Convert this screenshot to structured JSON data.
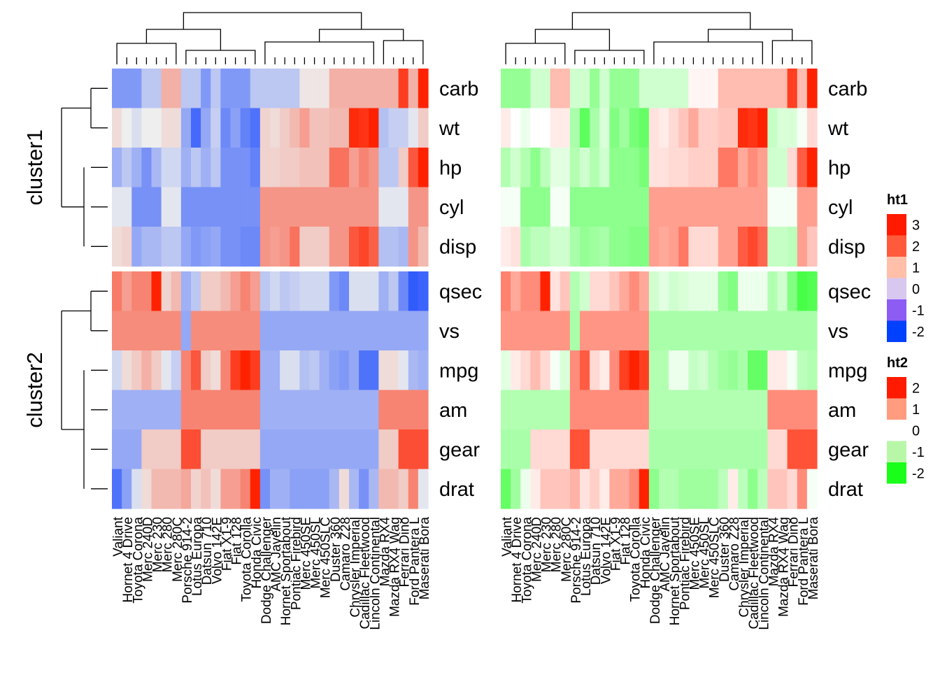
{
  "chart_data": {
    "type": "heatmap",
    "row_groups": [
      {
        "name": "cluster1",
        "rows": [
          "carb",
          "wt",
          "hp",
          "cyl",
          "disp"
        ]
      },
      {
        "name": "cluster2",
        "rows": [
          "qsec",
          "vs",
          "mpg",
          "am",
          "gear",
          "drat"
        ]
      }
    ],
    "columns": [
      "Valiant",
      "Hornet 4 Drive",
      "Toyota Corona",
      "Merc 240D",
      "Merc 230",
      "Merc 280",
      "Merc 280C",
      "Porsche 914-2",
      "Lotus Europa",
      "Datsun 710",
      "Volvo 142E",
      "Fiat X1-9",
      "Fiat 128",
      "Toyota Corolla",
      "Honda Civic",
      "Dodge Challenger",
      "AMC Javelin",
      "Hornet Sportabout",
      "Pontiac Firebird",
      "Merc 450SE",
      "Merc 450SL",
      "Merc 450SLC",
      "Duster 360",
      "Camaro Z28",
      "Chrysler Imperial",
      "Cadillac Fleetwood",
      "Lincoln Continental",
      "Mazda RX4",
      "Mazda RX4 Wag",
      "Ferrari Dino",
      "Ford Pantera L",
      "Maserati Bora"
    ],
    "column_labels_right": [
      "Valiant",
      "Hornet 4 Drive",
      "Toyota Corona",
      "Merc 240D",
      "Merc 230",
      "Merc 280",
      "Merc 280C",
      "Porsche 914-2",
      "Lotus Europa",
      "Datsun 710",
      "Volvo 142E",
      "Fiat X1-9",
      "Fiat 128",
      "Toyota Corolla",
      "Honda Civic",
      "Dodge Challenger",
      "AMC Javelin",
      "Hornet Sportabout",
      "Pontiac Firebird",
      "Merc 450SE",
      "Merc 450SL",
      "Merc 450SLC",
      "Duster 360",
      "Camaro Z28",
      "Chrysler Imperial",
      "Cadillac Fleetwood",
      "Lincoln Continental",
      "Mazda RX4",
      "Mazda RX4 Wag",
      "Ferrari Dino",
      "Ford Pantera L",
      "Maserati Bora"
    ],
    "values": {
      "carb": [
        -1.1,
        -1.1,
        -1.1,
        -0.5,
        -0.5,
        0.7,
        0.7,
        -0.5,
        -0.5,
        -1.1,
        -0.5,
        -1.1,
        -1.1,
        -1.1,
        -0.5,
        -0.5,
        -0.5,
        -0.5,
        -0.5,
        0.1,
        0.1,
        0.1,
        0.7,
        0.7,
        0.7,
        0.7,
        0.7,
        0.7,
        0.7,
        2.0,
        0.7,
        3.2
      ],
      "wt": [
        0.2,
        0.0,
        -0.2,
        0.0,
        0.0,
        0.2,
        0.2,
        -0.9,
        -1.7,
        -0.9,
        -0.4,
        -1.3,
        -1.0,
        -1.4,
        -1.6,
        0.3,
        0.2,
        0.4,
        0.6,
        0.9,
        0.5,
        0.5,
        0.6,
        0.6,
        2.2,
        2.1,
        2.3,
        -0.6,
        -0.4,
        -0.4,
        -0.1,
        0.4
      ],
      "hp": [
        -0.8,
        -0.5,
        -0.8,
        -1.2,
        -0.7,
        -0.3,
        -0.3,
        -0.8,
        -0.5,
        -0.8,
        -0.5,
        -1.2,
        -1.2,
        -1.2,
        -1.4,
        0.3,
        0.3,
        0.4,
        0.4,
        0.5,
        0.5,
        0.5,
        1.4,
        1.4,
        0.9,
        1.2,
        1.0,
        -0.5,
        -0.5,
        0.4,
        1.7,
        2.7
      ],
      "cyl": [
        -0.1,
        -0.1,
        -1.2,
        -1.2,
        -1.2,
        -0.1,
        -0.1,
        -1.2,
        -1.2,
        -1.2,
        -1.2,
        -1.2,
        -1.2,
        -1.2,
        -1.2,
        1.0,
        1.0,
        1.0,
        1.0,
        1.0,
        1.0,
        1.0,
        1.0,
        1.0,
        1.0,
        1.0,
        1.0,
        -0.1,
        -0.1,
        -0.1,
        1.0,
        1.0
      ],
      "disp": [
        0.2,
        0.3,
        -0.9,
        -0.7,
        -0.7,
        -0.5,
        -0.5,
        -0.9,
        -1.1,
        -1.0,
        -0.9,
        -1.2,
        -1.2,
        -1.3,
        -1.3,
        1.0,
        0.9,
        1.0,
        1.4,
        0.4,
        0.4,
        0.4,
        1.0,
        1.0,
        1.7,
        1.9,
        1.6,
        -0.6,
        -0.6,
        -0.7,
        1.0,
        0.6
      ],
      "qsec": [
        1.3,
        0.9,
        1.2,
        1.2,
        2.8,
        0.3,
        0.6,
        -0.8,
        -0.5,
        0.4,
        0.4,
        0.6,
        0.9,
        1.2,
        0.9,
        -0.5,
        -0.3,
        -0.5,
        -0.4,
        -0.3,
        -0.3,
        -0.3,
        -1.1,
        -1.3,
        -0.2,
        -0.2,
        -0.2,
        -0.8,
        -0.5,
        -1.3,
        -1.9,
        -1.8
      ],
      "vs": [
        1.1,
        1.1,
        1.1,
        1.1,
        1.1,
        1.1,
        1.1,
        -0.9,
        1.1,
        1.1,
        1.1,
        1.1,
        1.1,
        1.1,
        1.1,
        -0.9,
        -0.9,
        -0.9,
        -0.9,
        -0.9,
        -0.9,
        -0.9,
        -0.9,
        -0.9,
        -0.9,
        -0.9,
        -0.9,
        -0.9,
        -0.9,
        -0.9,
        -0.9,
        -0.9
      ],
      "mpg": [
        -0.3,
        0.2,
        0.4,
        0.7,
        0.4,
        -0.1,
        -0.4,
        1.2,
        1.7,
        0.4,
        0.2,
        1.2,
        2.0,
        2.3,
        2.0,
        -0.8,
        -0.8,
        -0.2,
        -0.2,
        -0.6,
        -0.5,
        -0.8,
        -1.0,
        -1.1,
        -0.9,
        -1.6,
        -1.6,
        0.2,
        0.2,
        -0.1,
        -0.7,
        -0.8
      ],
      "am": [
        -0.8,
        -0.8,
        -0.8,
        -0.8,
        -0.8,
        -0.8,
        -0.8,
        1.2,
        1.2,
        1.2,
        1.2,
        1.2,
        1.2,
        1.2,
        1.2,
        -0.8,
        -0.8,
        -0.8,
        -0.8,
        -0.8,
        -0.8,
        -0.8,
        -0.8,
        -0.8,
        -0.8,
        -0.8,
        -0.8,
        1.2,
        1.2,
        1.2,
        1.2,
        1.2
      ],
      "gear": [
        -0.9,
        -0.9,
        -0.9,
        0.4,
        0.4,
        0.4,
        0.4,
        1.8,
        1.8,
        0.4,
        0.4,
        0.4,
        0.4,
        0.4,
        0.4,
        -0.9,
        -0.9,
        -0.9,
        -0.9,
        -0.9,
        -0.9,
        -0.9,
        -0.9,
        -0.9,
        -0.9,
        -0.9,
        -0.9,
        0.4,
        0.4,
        1.8,
        1.8,
        1.8
      ],
      "drat": [
        -1.6,
        -1.0,
        -0.2,
        0.2,
        0.6,
        0.6,
        0.6,
        0.8,
        0.3,
        0.5,
        0.2,
        0.9,
        0.9,
        1.2,
        2.5,
        -1.2,
        -0.8,
        -0.8,
        -1.0,
        -1.0,
        -1.0,
        -1.0,
        -0.7,
        0.2,
        -0.7,
        -1.2,
        -0.7,
        0.6,
        0.6,
        0.4,
        1.2,
        -0.1
      ]
    },
    "legends": [
      {
        "title": "ht1",
        "ticks": [
          "3",
          "2",
          "1",
          "0",
          "-1",
          "-2"
        ],
        "colors": [
          "#ff1a00",
          "#ff5a3c",
          "#ffbfa8",
          "#d8c8f0",
          "#8c5cf5",
          "#0040ff"
        ]
      },
      {
        "title": "ht2",
        "ticks": [
          "2",
          "1",
          "0",
          "-1",
          "-2"
        ],
        "colors": [
          "#ff1a00",
          "#ff9c80",
          "#ffffff",
          "#b9f7a8",
          "#1aff1a"
        ]
      }
    ],
    "colors": {
      "ht1_neg": "#0a3cff",
      "ht1_mid": "#eeeeee",
      "ht1_pos": "#ff2200",
      "ht2_neg": "#22ff22",
      "ht2_mid": "#ffffff",
      "ht2_pos": "#ff2200"
    }
  }
}
